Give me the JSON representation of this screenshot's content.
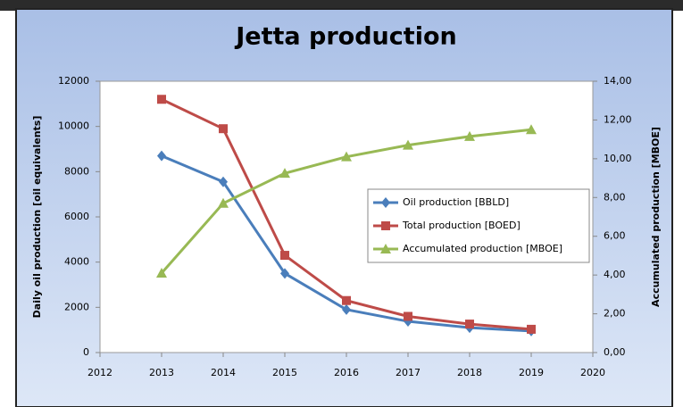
{
  "chart_data": {
    "type": "line",
    "title": "Jetta production",
    "x": [
      2013,
      2014,
      2015,
      2016,
      2017,
      2018,
      2019
    ],
    "xlim": [
      2012,
      2020
    ],
    "xticks": [
      2012,
      2013,
      2014,
      2015,
      2016,
      2017,
      2018,
      2019,
      2020
    ],
    "ylabel": "Daily oil production [oil equivalents]",
    "y2label": "Accumulated production [MBOE]",
    "ylim": [
      0,
      12000
    ],
    "yticks": [
      0,
      2000,
      4000,
      6000,
      8000,
      10000,
      12000
    ],
    "y2lim": [
      0,
      14
    ],
    "y2ticks": [
      {
        "value": 0,
        "label": "0,00"
      },
      {
        "value": 2,
        "label": "2,00"
      },
      {
        "value": 4,
        "label": "4,00"
      },
      {
        "value": 6,
        "label": "6,00"
      },
      {
        "value": 8,
        "label": "8,00"
      },
      {
        "value": 10,
        "label": "10,00"
      },
      {
        "value": 12,
        "label": "12,00"
      },
      {
        "value": 14,
        "label": "14,00"
      }
    ],
    "legend": "center-right",
    "series": [
      {
        "name": "Oil production [BBLD]",
        "color": "#4a7ebb",
        "marker": "diamond",
        "values": [
          8700,
          7550,
          3500,
          1900,
          1380,
          1100,
          950
        ]
      },
      {
        "name": "Total production [BOED]",
        "color": "#be4b48",
        "marker": "square",
        "values": [
          11200,
          9900,
          4300,
          2300,
          1600,
          1260,
          1030
        ]
      },
      {
        "name": "Accumulated production [MBOE]",
        "color": "#98b954",
        "marker": "triangle",
        "axis": "y2",
        "values": [
          4.1,
          7.7,
          9.25,
          10.1,
          10.7,
          11.15,
          11.5
        ]
      }
    ]
  }
}
